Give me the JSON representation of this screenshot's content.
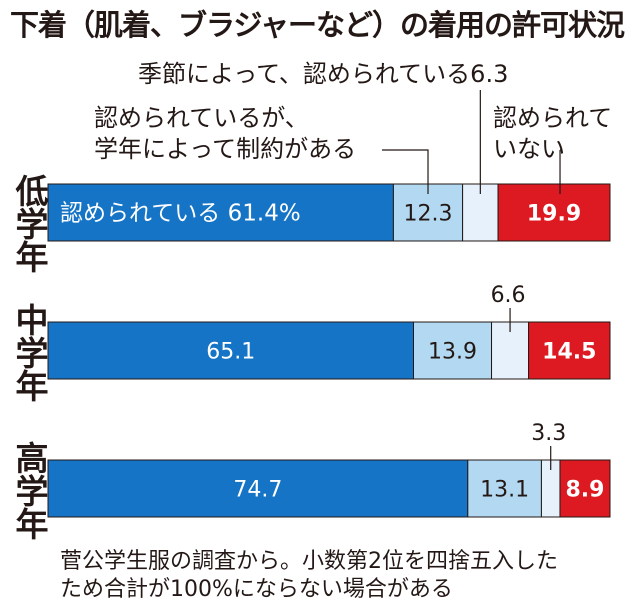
{
  "title": "下着（肌着、ブラジャーなど）の着用の許可状況",
  "annotations": {
    "permitted_by_grade": "季節によって、認められている",
    "permitted_by_grade_value_low": "6.3",
    "permitted_with_limits_line1": "認められているが、",
    "permitted_with_limits_line2": "学年によって制約がある",
    "not_permitted_line1": "認められて",
    "not_permitted_line2": "いない"
  },
  "grades": {
    "low": "低学年",
    "middle": "中学年",
    "high": "高学年"
  },
  "note": {
    "line1": "菅公学生服の調査から。小数第2位を四捨五入した",
    "line2": "ため合計が100%にならない場合がある"
  },
  "chart_data": {
    "type": "bar",
    "orientation": "horizontal",
    "stacked": true,
    "unit": "%",
    "title": "下着（肌着、ブラジャーなど）の着用の許可状況",
    "categories": [
      "低学年",
      "中学年",
      "高学年"
    ],
    "series": [
      {
        "name": "認められている",
        "color": "#1574c5",
        "label_color": "#ffffff",
        "values": [
          61.4,
          65.1,
          74.7
        ],
        "labels": [
          "認められている 61.4%",
          "65.1",
          "74.7"
        ]
      },
      {
        "name": "認められているが、学年によって制約がある",
        "color": "#b3d9f2",
        "label_color": "#231815",
        "values": [
          12.3,
          13.9,
          13.1
        ],
        "labels": [
          "12.3",
          "13.9",
          "13.1"
        ]
      },
      {
        "name": "季節によって、認められている",
        "color": "#e6f1fb",
        "label_color": "#231815",
        "values": [
          6.3,
          6.6,
          3.3
        ],
        "labels": [
          "",
          "6.6",
          "3.3"
        ]
      },
      {
        "name": "認められていない",
        "color": "#dd1a21",
        "label_color": "#ffffff",
        "values": [
          19.9,
          14.5,
          8.9
        ],
        "labels": [
          "19.9",
          "14.5",
          "8.9"
        ]
      }
    ]
  }
}
